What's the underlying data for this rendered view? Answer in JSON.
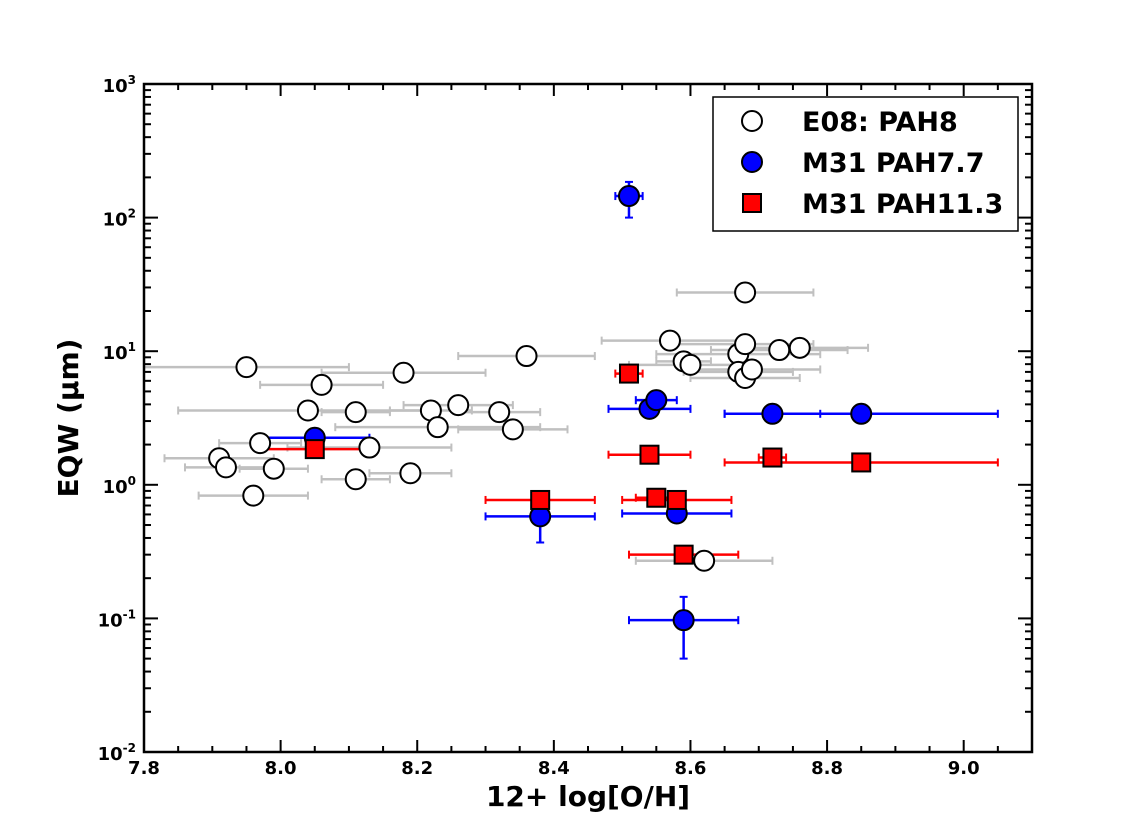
{
  "chart_data": {
    "type": "scatter",
    "xlabel": "12+ log[O/H]",
    "ylabel": "EQW (μm)",
    "xlim": [
      7.8,
      9.1
    ],
    "ylim": [
      0.01,
      1000
    ],
    "yscale": "log",
    "legend_position": "top-right",
    "x_ticks": [
      "7.8",
      "8.0",
      "8.2",
      "8.4",
      "8.6",
      "8.8",
      "9.0"
    ],
    "y_ticks": [
      {
        "base": "10",
        "exp": "-2"
      },
      {
        "base": "10",
        "exp": "-1"
      },
      {
        "base": "10",
        "exp": "0"
      },
      {
        "base": "10",
        "exp": "1"
      },
      {
        "base": "10",
        "exp": "2"
      },
      {
        "base": "10",
        "exp": "3"
      }
    ],
    "series": [
      {
        "name": "E08: PAH8",
        "marker": "circle-open",
        "color": "#ffffff",
        "err_color": "#c0c0c0",
        "points": [
          {
            "x": 7.91,
            "y": 1.58,
            "xerr": 0.08
          },
          {
            "x": 7.92,
            "y": 1.35,
            "xerr": 0.06
          },
          {
            "x": 7.95,
            "y": 7.6,
            "xerr": 0.15
          },
          {
            "x": 7.96,
            "y": 0.83,
            "xerr": 0.08
          },
          {
            "x": 7.97,
            "y": 2.05,
            "xerr": 0.06
          },
          {
            "x": 7.99,
            "y": 1.32,
            "xerr": 0.05
          },
          {
            "x": 8.04,
            "y": 3.6,
            "xerr": 0.19
          },
          {
            "x": 8.06,
            "y": 5.6,
            "xerr": 0.09
          },
          {
            "x": 8.11,
            "y": 3.5,
            "xerr": 0.05
          },
          {
            "x": 8.11,
            "y": 1.1,
            "xerr": 0.05
          },
          {
            "x": 8.13,
            "y": 1.9,
            "xerr": 0.12
          },
          {
            "x": 8.18,
            "y": 6.9,
            "xerr": 0.12
          },
          {
            "x": 8.19,
            "y": 1.22,
            "xerr": 0.06
          },
          {
            "x": 8.22,
            "y": 3.6,
            "xerr": 0.06
          },
          {
            "x": 8.23,
            "y": 2.7,
            "xerr": 0.15
          },
          {
            "x": 8.26,
            "y": 3.95,
            "xerr": 0.08
          },
          {
            "x": 8.32,
            "y": 3.5,
            "xerr": 0.06
          },
          {
            "x": 8.34,
            "y": 2.6,
            "xerr": 0.08
          },
          {
            "x": 8.36,
            "y": 9.2,
            "xerr": 0.1
          },
          {
            "x": 8.57,
            "y": 12.0,
            "xerr": 0.1
          },
          {
            "x": 8.59,
            "y": 8.4,
            "xerr": 0.04
          },
          {
            "x": 8.6,
            "y": 7.9,
            "xerr": 0.09
          },
          {
            "x": 8.62,
            "y": 0.27,
            "xerr": 0.1
          },
          {
            "x": 8.67,
            "y": 9.5,
            "xerr": 0.12
          },
          {
            "x": 8.67,
            "y": 7.0,
            "xerr": 0.08
          },
          {
            "x": 8.68,
            "y": 27.5,
            "xerr": 0.1
          },
          {
            "x": 8.68,
            "y": 11.3,
            "xerr": 0.1
          },
          {
            "x": 8.68,
            "y": 6.3,
            "xerr": 0.08
          },
          {
            "x": 8.69,
            "y": 7.3,
            "xerr": 0.1
          },
          {
            "x": 8.73,
            "y": 10.2,
            "xerr": 0.1
          },
          {
            "x": 8.76,
            "y": 10.6,
            "xerr": 0.1
          }
        ]
      },
      {
        "name": "M31 PAH7.7",
        "marker": "circle",
        "color": "#0000ff",
        "err_color": "#0000ff",
        "points": [
          {
            "x": 8.05,
            "y": 2.25,
            "xerr": 0.08,
            "yerr": [
              2.0,
              2.5
            ]
          },
          {
            "x": 8.38,
            "y": 0.58,
            "xerr": 0.08,
            "yerr": [
              0.37,
              0.7
            ]
          },
          {
            "x": 8.51,
            "y": 145,
            "xerr": 0.02,
            "yerr": [
              100,
              185
            ]
          },
          {
            "x": 8.54,
            "y": 3.7,
            "xerr": 0.06
          },
          {
            "x": 8.55,
            "y": 4.3,
            "xerr": 0.03
          },
          {
            "x": 8.58,
            "y": 0.61,
            "xerr": 0.08
          },
          {
            "x": 8.59,
            "y": 0.097,
            "xerr": 0.08,
            "yerr": [
              0.05,
              0.145
            ]
          },
          {
            "x": 8.72,
            "y": 3.4,
            "xerr": 0.07
          },
          {
            "x": 8.85,
            "y": 3.4,
            "xerr": 0.2
          }
        ]
      },
      {
        "name": "M31 PAH11.3",
        "marker": "square",
        "color": "#ff0000",
        "err_color": "#ff0000",
        "points": [
          {
            "x": 8.05,
            "y": 1.85,
            "xerr": 0.08
          },
          {
            "x": 8.38,
            "y": 0.77,
            "xerr": 0.08
          },
          {
            "x": 8.51,
            "y": 6.8,
            "xerr": 0.02
          },
          {
            "x": 8.54,
            "y": 1.68,
            "xerr": 0.06
          },
          {
            "x": 8.55,
            "y": 0.8,
            "xerr": 0.03
          },
          {
            "x": 8.58,
            "y": 0.77,
            "xerr": 0.08
          },
          {
            "x": 8.59,
            "y": 0.3,
            "xerr": 0.08
          },
          {
            "x": 8.72,
            "y": 1.6,
            "xerr": 0.02
          },
          {
            "x": 8.85,
            "y": 1.47,
            "xerr": 0.2
          }
        ]
      }
    ]
  }
}
